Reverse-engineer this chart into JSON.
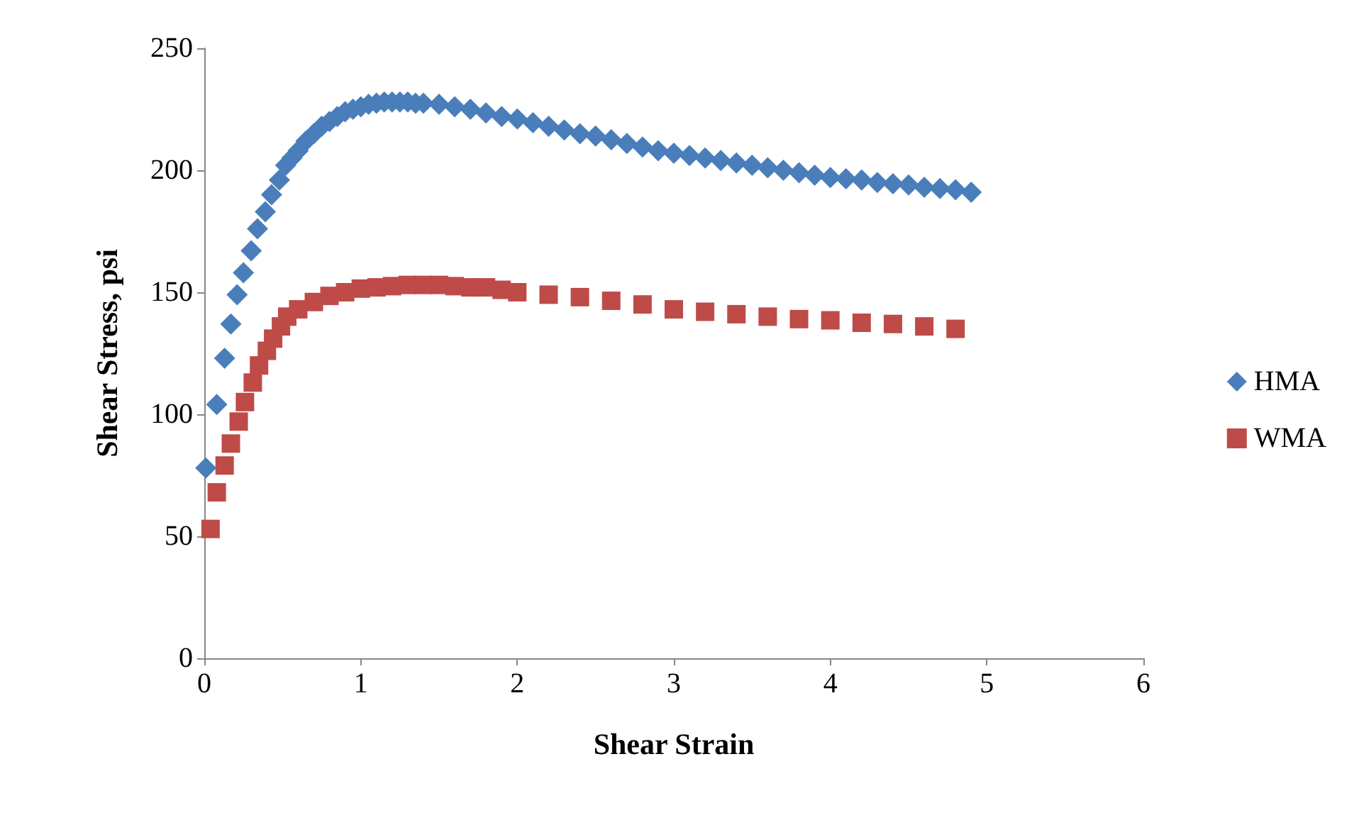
{
  "chart_data": {
    "type": "scatter",
    "xlabel": "Shear Strain",
    "ylabel": "Shear Stress, psi",
    "xlim": [
      0,
      6
    ],
    "xticks": [
      0,
      1,
      2,
      3,
      4,
      5,
      6
    ],
    "ylim": [
      0,
      250
    ],
    "yticks": [
      0,
      50,
      100,
      150,
      200,
      250
    ],
    "grid": false,
    "legend": "right",
    "series": [
      {
        "name": "HMA",
        "color": "#4a7ebb",
        "marker": "diamond",
        "x": [
          0.01,
          0.08,
          0.13,
          0.17,
          0.21,
          0.25,
          0.3,
          0.34,
          0.39,
          0.43,
          0.48,
          0.52,
          0.56,
          0.6,
          0.65,
          0.7,
          0.75,
          0.8,
          0.85,
          0.9,
          0.95,
          1.0,
          1.05,
          1.1,
          1.15,
          1.2,
          1.25,
          1.3,
          1.35,
          1.4,
          1.5,
          1.6,
          1.7,
          1.8,
          1.9,
          2.0,
          2.1,
          2.2,
          2.3,
          2.4,
          2.5,
          2.6,
          2.7,
          2.8,
          2.9,
          3.0,
          3.1,
          3.2,
          3.3,
          3.4,
          3.5,
          3.6,
          3.7,
          3.8,
          3.9,
          4.0,
          4.1,
          4.2,
          4.3,
          4.4,
          4.5,
          4.6,
          4.7,
          4.8,
          4.9
        ],
        "values": [
          78,
          104,
          123,
          137,
          149,
          158,
          167,
          176,
          183,
          190,
          196,
          202,
          205,
          208,
          212,
          215,
          218,
          220,
          222,
          224,
          225,
          226,
          227,
          227.5,
          228,
          228,
          228,
          228,
          227.5,
          227.5,
          227,
          226,
          225,
          223.5,
          222,
          221,
          219.5,
          218,
          216.5,
          215,
          214,
          212.5,
          211,
          209.5,
          208,
          207,
          206,
          205,
          204,
          203,
          202,
          201,
          200,
          199,
          198,
          197,
          196.5,
          196,
          195,
          194.5,
          194,
          193,
          192.5,
          192,
          191
        ]
      },
      {
        "name": "WMA",
        "color": "#be4b48",
        "marker": "square",
        "x": [
          0.04,
          0.08,
          0.13,
          0.17,
          0.22,
          0.26,
          0.31,
          0.35,
          0.4,
          0.44,
          0.49,
          0.53,
          0.6,
          0.7,
          0.8,
          0.9,
          1.0,
          1.1,
          1.2,
          1.3,
          1.4,
          1.5,
          1.6,
          1.7,
          1.8,
          1.9,
          2.0,
          2.2,
          2.4,
          2.6,
          2.8,
          3.0,
          3.2,
          3.4,
          3.6,
          3.8,
          4.0,
          4.2,
          4.4,
          4.6,
          4.8
        ],
        "values": [
          53,
          68,
          79,
          88,
          97,
          105,
          113,
          120,
          126,
          131,
          136,
          140,
          143,
          146,
          148.5,
          150,
          151.5,
          152,
          152.5,
          153,
          153,
          153,
          152.5,
          152,
          152,
          151,
          150,
          149,
          148,
          146.5,
          145,
          143,
          142,
          141,
          140,
          139,
          138.5,
          137.5,
          137,
          136,
          135
        ]
      }
    ]
  }
}
